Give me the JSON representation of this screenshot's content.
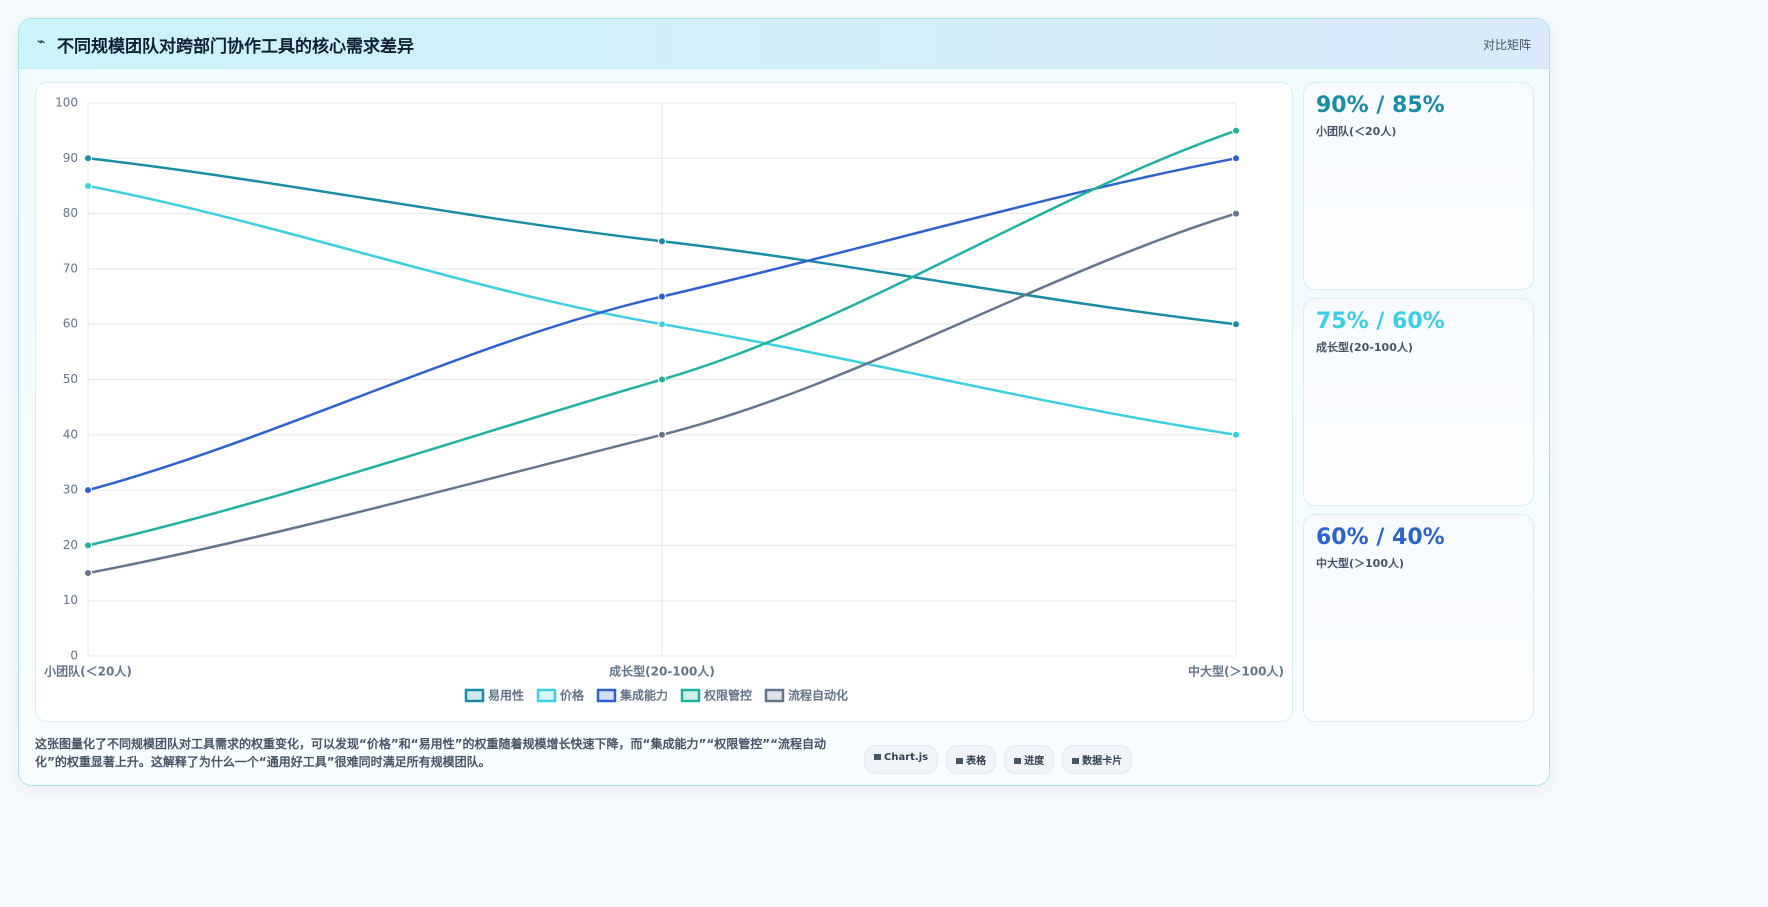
{
  "header": {
    "icon": "⌁",
    "title": "不同规模团队对跨部门协作工具的核心需求差异",
    "badge": "对比矩阵"
  },
  "chart_data": {
    "type": "line",
    "categories": [
      "小团队(＜20人)",
      "成长型(20-100人)",
      "中大型(＞100人)"
    ],
    "series": [
      {
        "name": "易用性",
        "color": "#1a8ca6",
        "values": [
          90,
          75,
          60
        ]
      },
      {
        "name": "价格",
        "color": "#3ccfe2",
        "values": [
          85,
          60,
          40
        ]
      },
      {
        "name": "集成能力",
        "color": "#2d62cf",
        "values": [
          30,
          65,
          90
        ]
      },
      {
        "name": "权限管控",
        "color": "#21b1a1",
        "values": [
          20,
          50,
          95
        ]
      },
      {
        "name": "流程自动化",
        "color": "#65758b",
        "values": [
          15,
          40,
          80
        ]
      }
    ],
    "ylim": [
      0,
      100
    ],
    "yticks": [
      0,
      10,
      20,
      30,
      40,
      50,
      60,
      70,
      80,
      90,
      100
    ],
    "grid": true
  },
  "cards": [
    {
      "value": "90% / 85%",
      "label": "小团队(＜20人)",
      "color": "#1a8ca6"
    },
    {
      "value": "75% / 60%",
      "label": "成长型(20-100人)",
      "color": "#3ccfe2"
    },
    {
      "value": "60% / 40%",
      "label": "中大型(＞100人)",
      "color": "#2d62cf"
    }
  ],
  "footer": {
    "text": "这张图量化了不同规模团队对工具需求的权重变化，可以发现“价格”和“易用性”的权重随着规模增长快速下降，而“集成能力”“权限管控”“流程自动化”的权重显著上升。这解释了为什么一个“通用好工具”很难同时满足所有规模团队。",
    "chips": [
      "Chart.js",
      "表格",
      "进度",
      "数据卡片"
    ]
  }
}
